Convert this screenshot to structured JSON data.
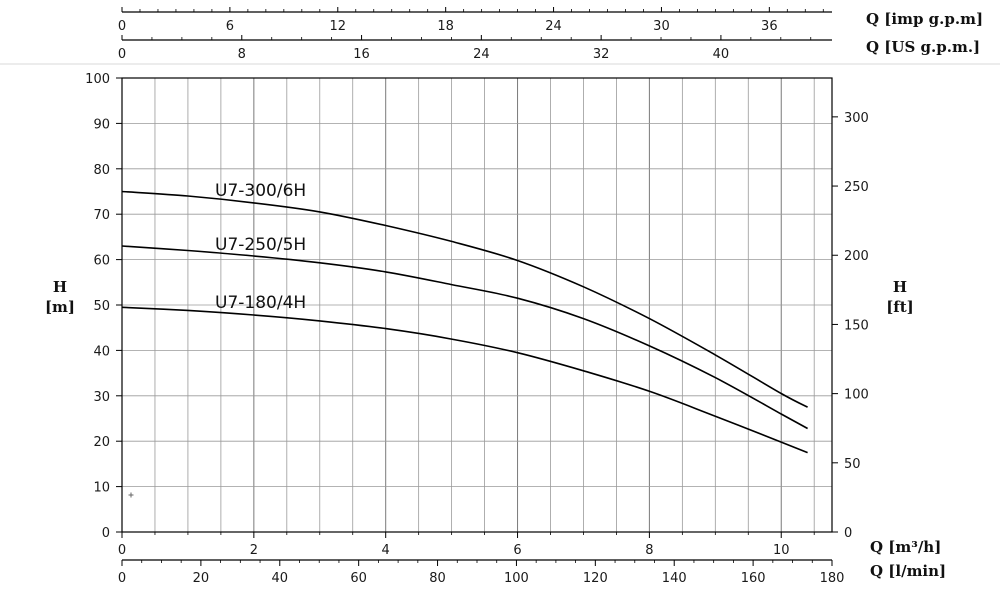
{
  "chart_data": {
    "type": "line",
    "x_axis_bottom": {
      "label": "Q [m³/h]",
      "range": [
        0,
        10.77
      ],
      "ticks": [
        0,
        2,
        4,
        6,
        8,
        10
      ]
    },
    "x_axis_bottom2": {
      "label": "Q [l/min]",
      "range": [
        0,
        180
      ],
      "ticks": [
        0,
        20,
        40,
        60,
        80,
        100,
        120,
        140,
        160,
        180
      ]
    },
    "x_axis_top1": {
      "label": "Q [imp g.p.m]",
      "ticks": [
        0,
        6,
        12,
        18,
        24,
        30,
        36
      ]
    },
    "x_axis_top2": {
      "label": "Q [US g.p.m.]",
      "ticks": [
        0,
        8,
        16,
        24,
        32,
        40
      ]
    },
    "y_axis_left": {
      "label_top": "H",
      "label_bottom": "[m]",
      "range": [
        0,
        100
      ],
      "ticks": [
        0,
        10,
        20,
        30,
        40,
        50,
        60,
        70,
        80,
        90,
        100
      ]
    },
    "y_axis_right": {
      "label_top": "H",
      "label_bottom": "[ft]",
      "ticks": [
        0,
        50,
        100,
        150,
        200,
        250,
        300
      ]
    },
    "series": [
      {
        "name": "U7-300/6H",
        "x": [
          0,
          1,
          2,
          3,
          4,
          5,
          6,
          7,
          8,
          9,
          10,
          10.4
        ],
        "y": [
          75,
          74,
          72.5,
          70.5,
          67.5,
          64,
          59.8,
          54,
          47,
          39,
          30.5,
          27.5
        ]
      },
      {
        "name": "U7-250/5H",
        "x": [
          0,
          1,
          2,
          3,
          4,
          5,
          6,
          7,
          8,
          9,
          10,
          10.4
        ],
        "y": [
          63,
          62,
          60.8,
          59.3,
          57.3,
          54.5,
          51.5,
          47,
          41,
          34,
          26,
          22.8
        ]
      },
      {
        "name": "U7-180/4H",
        "x": [
          0,
          1,
          2,
          3,
          4,
          5,
          6,
          7,
          8,
          9,
          10,
          10.4
        ],
        "y": [
          49.5,
          48.8,
          47.8,
          46.5,
          44.8,
          42.5,
          39.5,
          35.5,
          31,
          25.5,
          19.8,
          17.5
        ]
      }
    ],
    "grid": true
  }
}
